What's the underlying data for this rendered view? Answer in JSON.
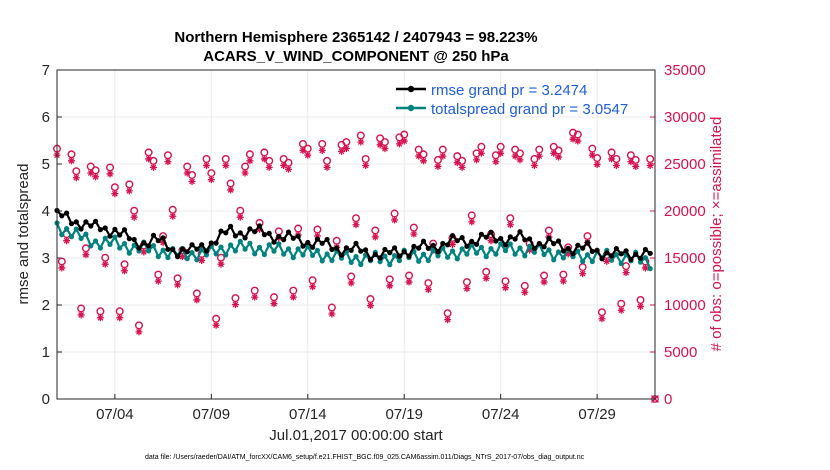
{
  "chart_data": {
    "type": "line",
    "title_line1": "Northern Hemisphere 2365142 / 2407943 = 98.223%",
    "title_line2": "ACARS_V_WIND_COMPONENT @ 250 hPa",
    "xlabel": "Jul.01,2017 00:00:00 start",
    "ylabel_left": "rmse and totalspread",
    "ylabel_right": "# of obs: o=possible; ×=assimilated",
    "xlim": [
      0,
      31
    ],
    "ylim_left": [
      0,
      7
    ],
    "ylim_right": [
      0,
      35000
    ],
    "x_ticks": [
      {
        "value": 3,
        "label": "07/04"
      },
      {
        "value": 8,
        "label": "07/09"
      },
      {
        "value": 13,
        "label": "07/14"
      },
      {
        "value": 18,
        "label": "07/19"
      },
      {
        "value": 23,
        "label": "07/24"
      },
      {
        "value": 28,
        "label": "07/29"
      }
    ],
    "y_ticks_left": [
      "0",
      "1",
      "2",
      "3",
      "4",
      "5",
      "6",
      "7"
    ],
    "y_ticks_right": [
      "0",
      "5000",
      "10000",
      "15000",
      "20000",
      "25000",
      "30000",
      "35000"
    ],
    "footnote": "data file: /Users/raeder/DAI/ATM_forcXX/CAM6_setup/f.e21.FHIST_BGC.f09_025.CAM6assim.011/Diags_NTrS_2017-07/obs_diag_output.nc",
    "series": [
      {
        "name": "rmse",
        "legend": "rmse grand pr = 3.2474",
        "color": "#000000",
        "axis": "left",
        "base": [
          3.88,
          3.78,
          3.62,
          3.6,
          3.3,
          3.38,
          3.18,
          3.12,
          3.33,
          3.55,
          3.55,
          3.5,
          3.4,
          3.35,
          3.25,
          3.18,
          3.12,
          3.05,
          3.15,
          3.2,
          3.3,
          3.35,
          3.4,
          3.42,
          3.4,
          3.32,
          3.25,
          3.2,
          3.15,
          3.05,
          3.1,
          3.05
        ]
      },
      {
        "name": "totalspread",
        "legend": "totalspread grand pr = 3.0547",
        "color": "#00827f",
        "axis": "left",
        "base": [
          3.65,
          3.45,
          3.3,
          3.28,
          3.18,
          3.15,
          3.05,
          3.05,
          3.08,
          3.2,
          3.18,
          3.15,
          3.12,
          3.08,
          3.02,
          2.98,
          2.95,
          2.95,
          3.0,
          3.02,
          3.05,
          3.1,
          3.12,
          3.15,
          3.15,
          3.12,
          3.05,
          3.02,
          3.0,
          3.0,
          2.95,
          2.85
        ]
      },
      {
        "name": "possible",
        "marker": "o",
        "color": "#d6134f",
        "axis": "right",
        "points": [
          [
            0,
            26100
          ],
          [
            0.25,
            14100
          ],
          [
            0.5,
            17000
          ],
          [
            0.75,
            25500
          ],
          [
            1,
            23700
          ],
          [
            1.25,
            9100
          ],
          [
            1.5,
            15500
          ],
          [
            1.75,
            24200
          ],
          [
            2,
            23800
          ],
          [
            2.25,
            8800
          ],
          [
            2.5,
            14500
          ],
          [
            2.75,
            24100
          ],
          [
            3,
            22000
          ],
          [
            3.25,
            8800
          ],
          [
            3.5,
            13800
          ],
          [
            3.75,
            22300
          ],
          [
            4,
            19500
          ],
          [
            4.25,
            7300
          ],
          [
            4.5,
            15800
          ],
          [
            4.75,
            25700
          ],
          [
            5,
            24800
          ],
          [
            5.25,
            12700
          ],
          [
            5.5,
            16800
          ],
          [
            5.75,
            25400
          ],
          [
            6,
            19600
          ],
          [
            6.25,
            12300
          ],
          [
            6.5,
            15300
          ],
          [
            6.75,
            24200
          ],
          [
            7,
            23300
          ],
          [
            7.25,
            10700
          ],
          [
            7.5,
            14900
          ],
          [
            7.75,
            25000
          ],
          [
            8,
            23500
          ],
          [
            8.25,
            8000
          ],
          [
            8.5,
            14500
          ],
          [
            8.75,
            25000
          ],
          [
            9,
            22400
          ],
          [
            9.25,
            10200
          ],
          [
            9.5,
            19500
          ],
          [
            9.75,
            24200
          ],
          [
            10,
            25500
          ],
          [
            10.25,
            11000
          ],
          [
            10.5,
            18200
          ],
          [
            10.75,
            25700
          ],
          [
            11,
            24800
          ],
          [
            11.25,
            10300
          ],
          [
            11.5,
            17300
          ],
          [
            11.75,
            25000
          ],
          [
            12,
            24600
          ],
          [
            12.25,
            11000
          ],
          [
            12.5,
            17600
          ],
          [
            12.75,
            26600
          ],
          [
            13,
            26100
          ],
          [
            13.25,
            12100
          ],
          [
            13.5,
            17500
          ],
          [
            13.75,
            26600
          ],
          [
            14,
            24800
          ],
          [
            14.25,
            9200
          ],
          [
            14.5,
            16300
          ],
          [
            14.75,
            26500
          ],
          [
            15,
            26800
          ],
          [
            15.25,
            12500
          ],
          [
            15.5,
            18700
          ],
          [
            15.75,
            27500
          ],
          [
            16,
            25000
          ],
          [
            16.25,
            10100
          ],
          [
            16.5,
            17400
          ],
          [
            16.75,
            27200
          ],
          [
            17,
            26800
          ],
          [
            17.25,
            12200
          ],
          [
            17.5,
            19200
          ],
          [
            17.75,
            27300
          ],
          [
            18,
            27600
          ],
          [
            18.25,
            12600
          ],
          [
            18.5,
            17700
          ],
          [
            18.75,
            26000
          ],
          [
            19,
            25500
          ],
          [
            19.25,
            11800
          ],
          [
            19.5,
            16000
          ],
          [
            19.75,
            24900
          ],
          [
            20,
            26000
          ],
          [
            20.25,
            8600
          ],
          [
            20.5,
            16600
          ],
          [
            20.75,
            25300
          ],
          [
            21,
            24800
          ],
          [
            21.25,
            11900
          ],
          [
            21.5,
            19000
          ],
          [
            21.75,
            25600
          ],
          [
            22,
            26300
          ],
          [
            22.25,
            13000
          ],
          [
            22.5,
            17000
          ],
          [
            22.75,
            25400
          ],
          [
            23,
            26300
          ],
          [
            23.25,
            12000
          ],
          [
            23.5,
            18700
          ],
          [
            23.75,
            26000
          ],
          [
            24,
            25600
          ],
          [
            24.25,
            11500
          ],
          [
            24.5,
            16000
          ],
          [
            24.75,
            25000
          ],
          [
            25,
            26000
          ],
          [
            25.25,
            12600
          ],
          [
            25.5,
            17400
          ],
          [
            25.75,
            26300
          ],
          [
            26,
            25900
          ],
          [
            26.25,
            12700
          ],
          [
            26.5,
            15600
          ],
          [
            26.75,
            27800
          ],
          [
            27,
            27600
          ],
          [
            27.25,
            13500
          ],
          [
            27.5,
            16800
          ],
          [
            27.75,
            26100
          ],
          [
            28,
            25100
          ],
          [
            28.25,
            8700
          ],
          [
            28.5,
            14800
          ],
          [
            28.75,
            25700
          ],
          [
            29,
            25000
          ],
          [
            29.25,
            9600
          ],
          [
            29.5,
            13600
          ],
          [
            29.75,
            25400
          ],
          [
            30,
            24900
          ],
          [
            30.25,
            10000
          ],
          [
            30.5,
            14100
          ],
          [
            30.75,
            25000
          ],
          [
            31,
            0
          ]
        ]
      },
      {
        "name": "assimilated",
        "marker": "x",
        "color": "#d6134f",
        "axis": "right"
      }
    ]
  }
}
